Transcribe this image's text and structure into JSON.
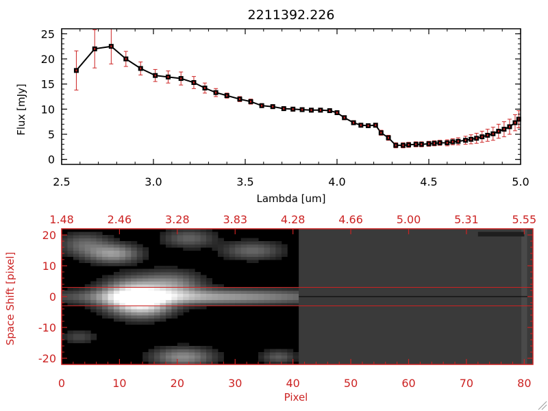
{
  "chart_data": [
    {
      "type": "line",
      "title": "2211392.226",
      "xlabel": "Lambda [um]",
      "ylabel": "Flux [mJy]",
      "xlim": [
        2.5,
        5.0
      ],
      "ylim": [
        -1,
        26
      ],
      "x_ticks": [
        {
          "value": 2.5,
          "label": "2.5"
        },
        {
          "value": 3.0,
          "label": "3.0"
        },
        {
          "value": 3.5,
          "label": "3.5"
        },
        {
          "value": 4.0,
          "label": "4.0"
        },
        {
          "value": 4.5,
          "label": "4.5"
        },
        {
          "value": 5.0,
          "label": "5.0"
        }
      ],
      "y_ticks": [
        {
          "value": 0,
          "label": "0"
        },
        {
          "value": 5,
          "label": "5"
        },
        {
          "value": 10,
          "label": "10"
        },
        {
          "value": 15,
          "label": "15"
        },
        {
          "value": 20,
          "label": "20"
        },
        {
          "value": 25,
          "label": "25"
        }
      ],
      "grid": false,
      "colors": {
        "line": "#000000",
        "marker": "#000000",
        "error_bar": "#cc2222"
      },
      "series": [
        {
          "x": [
            2.58,
            2.68,
            2.77,
            2.85,
            2.93,
            3.01,
            3.08,
            3.15,
            3.22,
            3.28,
            3.34,
            3.4,
            3.47,
            3.53,
            3.59,
            3.65,
            3.71,
            3.76,
            3.81,
            3.86,
            3.91,
            3.96,
            4.0,
            4.04,
            4.09,
            4.13,
            4.17,
            4.21,
            4.24,
            4.28,
            4.32,
            4.36,
            4.39,
            4.43,
            4.46,
            4.5,
            4.53,
            4.56,
            4.6,
            4.63,
            4.66,
            4.7,
            4.73,
            4.76,
            4.79,
            4.82,
            4.85,
            4.88,
            4.91,
            4.94,
            4.97,
            4.99
          ],
          "y": [
            17.7,
            22.0,
            22.5,
            20.0,
            18.1,
            16.7,
            16.4,
            16.1,
            15.3,
            14.2,
            13.3,
            12.7,
            12.0,
            11.5,
            10.7,
            10.5,
            10.1,
            10.0,
            9.9,
            9.8,
            9.8,
            9.7,
            9.3,
            8.3,
            7.3,
            6.8,
            6.7,
            6.8,
            5.3,
            4.3,
            2.8,
            2.8,
            2.9,
            3.0,
            3.0,
            3.1,
            3.2,
            3.3,
            3.3,
            3.5,
            3.6,
            3.8,
            4.0,
            4.2,
            4.5,
            4.8,
            5.1,
            5.6,
            6.0,
            6.5,
            7.3,
            8.0
          ],
          "err": [
            3.9,
            3.8,
            3.5,
            1.5,
            1.3,
            1.2,
            1.2,
            1.3,
            1.2,
            1.0,
            0.8,
            0.5,
            0.5,
            0.5,
            0.4,
            0.4,
            0.4,
            0.4,
            0.4,
            0.4,
            0.4,
            0.4,
            0.4,
            0.4,
            0.4,
            0.4,
            0.4,
            0.4,
            0.5,
            0.5,
            0.5,
            0.5,
            0.5,
            0.5,
            0.5,
            0.5,
            0.5,
            0.5,
            0.6,
            0.6,
            0.7,
            0.8,
            0.9,
            1.0,
            1.1,
            1.2,
            1.3,
            1.4,
            1.5,
            1.5,
            1.6,
            1.7
          ]
        }
      ]
    },
    {
      "type": "heatmap",
      "xlabel": "Pixel",
      "ylabel": "Space Shift [pixel]",
      "xlim": [
        0,
        81.5
      ],
      "ylim": [
        -22,
        22
      ],
      "x_ticks": [
        {
          "value": 0,
          "label": "0"
        },
        {
          "value": 10,
          "label": "10"
        },
        {
          "value": 20,
          "label": "20"
        },
        {
          "value": 30,
          "label": "30"
        },
        {
          "value": 40,
          "label": "40"
        },
        {
          "value": 50,
          "label": "50"
        },
        {
          "value": 60,
          "label": "60"
        },
        {
          "value": 70,
          "label": "70"
        },
        {
          "value": 80,
          "label": "80"
        }
      ],
      "top_ticks": [
        {
          "value": 0,
          "label": "1.48"
        },
        {
          "value": 10,
          "label": "2.46"
        },
        {
          "value": 20,
          "label": "3.28"
        },
        {
          "value": 30,
          "label": "3.83"
        },
        {
          "value": 40,
          "label": "4.28"
        },
        {
          "value": 50,
          "label": "4.66"
        },
        {
          "value": 60,
          "label": "5.00"
        },
        {
          "value": 70,
          "label": "5.31"
        },
        {
          "value": 80,
          "label": "5.55"
        }
      ],
      "y_ticks": [
        {
          "value": -20,
          "label": "-20"
        },
        {
          "value": -10,
          "label": "-10"
        },
        {
          "value": 0,
          "label": "0"
        },
        {
          "value": 10,
          "label": "10"
        },
        {
          "value": 20,
          "label": "20"
        }
      ],
      "extraction_aperture": [
        -3,
        3
      ],
      "data_coverage_max_pixel": 41,
      "colors": {
        "axes": "#cc2222",
        "aperture_lines": "#cc2222",
        "center_line": "#000000",
        "no_data_fill": "#3a3a3a",
        "background": "#000000"
      },
      "sources": [
        {
          "x": 12.5,
          "y": 0,
          "sx": 3.5,
          "sy": 3.5,
          "amp": 1.0
        },
        {
          "x": 24,
          "y": 0,
          "sx": 16,
          "sy": 1.6,
          "amp": 0.55
        },
        {
          "x": 19,
          "y": 3.5,
          "sx": 3.5,
          "sy": 3,
          "amp": 0.45
        },
        {
          "x": 15,
          "y": -3,
          "sx": 3,
          "sy": 2.5,
          "amp": 0.35
        },
        {
          "x": 9,
          "y": 14,
          "sx": 3,
          "sy": 2,
          "amp": 0.5
        },
        {
          "x": 21,
          "y": -19.5,
          "sx": 3.5,
          "sy": 2,
          "amp": 0.45
        },
        {
          "x": 33,
          "y": 15,
          "sx": 3.5,
          "sy": 2,
          "amp": 0.3
        },
        {
          "x": 4,
          "y": 17,
          "sx": 3,
          "sy": 2.5,
          "amp": 0.3
        },
        {
          "x": 22,
          "y": 19,
          "sx": 3,
          "sy": 2,
          "amp": 0.28
        },
        {
          "x": 37.5,
          "y": -19.5,
          "sx": 2,
          "sy": 1.5,
          "amp": 0.25
        },
        {
          "x": 3,
          "y": -13,
          "sx": 2,
          "sy": 1.5,
          "amp": 0.18
        }
      ]
    }
  ]
}
